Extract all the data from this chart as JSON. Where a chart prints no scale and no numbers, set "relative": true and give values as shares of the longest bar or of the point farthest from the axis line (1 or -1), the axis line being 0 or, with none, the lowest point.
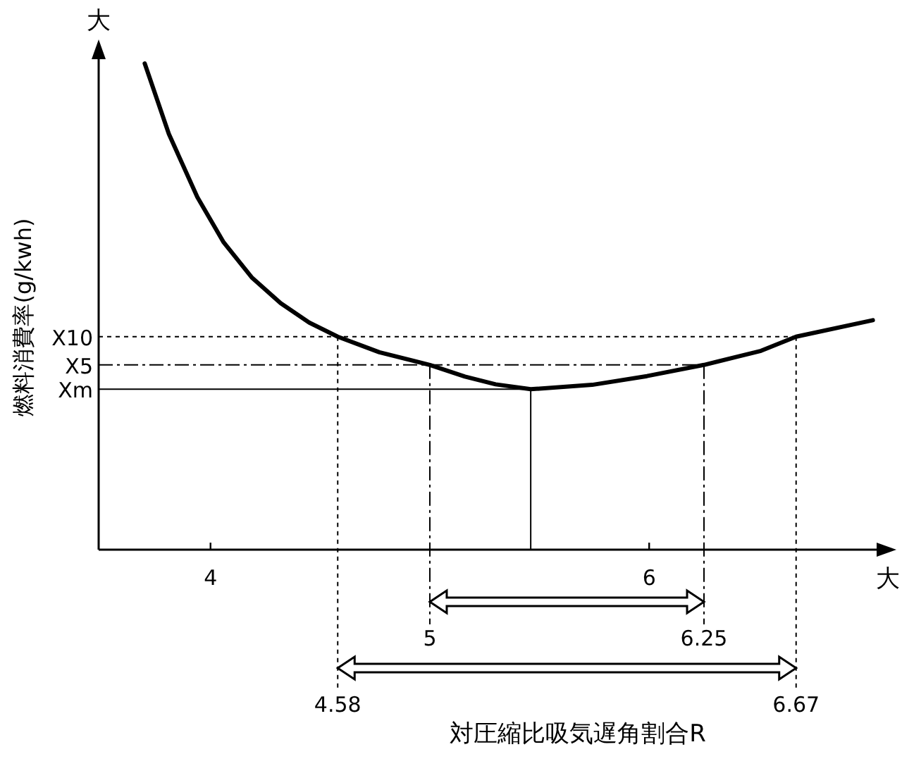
{
  "chart_data": {
    "type": "line",
    "relative": true,
    "ylabel": "燃料消費率(g/kwh)",
    "xlim": [
      3.49,
      7.05
    ],
    "xticks": [
      4,
      6
    ],
    "series": [
      {
        "color": "#000000",
        "x": [
          3.7,
          3.81,
          3.94,
          4.06,
          4.19,
          4.32,
          4.45,
          4.58,
          4.77,
          5.0,
          5.16,
          5.3,
          5.46,
          5.74,
          5.99,
          6.25,
          6.51,
          6.67,
          7.02
        ],
        "values": [
          1.0,
          0.855,
          0.725,
          0.632,
          0.559,
          0.507,
          0.467,
          0.438,
          0.406,
          0.38,
          0.356,
          0.34,
          0.33,
          0.339,
          0.357,
          0.38,
          0.409,
          0.438,
          0.472
        ]
      }
    ],
    "ref_lines": [
      {
        "axis": "y",
        "value": 0.438,
        "label": "X10",
        "line_style": "dotted"
      },
      {
        "axis": "y",
        "value": 0.38,
        "label": "X5",
        "line_style": "dashed"
      },
      {
        "axis": "y",
        "value": 0.33,
        "label": "Xm",
        "line_style": "solid"
      },
      {
        "axis": "x",
        "value": 5,
        "label": "5",
        "line_style": "dashed"
      },
      {
        "axis": "x",
        "value": 6.25,
        "label": "6.25",
        "line_style": "dashed"
      },
      {
        "axis": "x",
        "value": 4.58,
        "label": "4.58",
        "line_style": "dotted"
      },
      {
        "axis": "x",
        "value": 6.67,
        "label": "6.67",
        "line_style": "dotted"
      },
      {
        "axis": "x",
        "value": 5.46,
        "line_style": "solid"
      }
    ],
    "annotations": [
      "大",
      "大",
      "対圧縮比吸気遅角割合R"
    ]
  }
}
